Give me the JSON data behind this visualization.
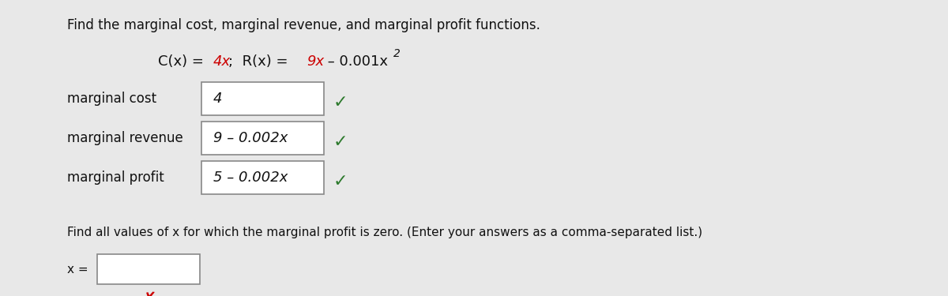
{
  "background_color": "#e8e8e8",
  "content_bg": "#e0e0e0",
  "title_text": "Find the marginal cost, marginal revenue, and marginal profit functions.",
  "rows": [
    {
      "label": "marginal cost",
      "answer": "4",
      "has_check": true
    },
    {
      "label": "marginal revenue",
      "answer": "9 – 0.002x",
      "has_check": true
    },
    {
      "label": "marginal profit",
      "answer": "5 – 0.002x",
      "has_check": true
    }
  ],
  "bottom_text": "Find all values of x for which the marginal profit is zero. (Enter your answers as a comma-separated list.)",
  "x_label": "x =",
  "check_color": "#2d7a2d",
  "x_mark_color": "#cc0000",
  "box_edge_color": "#888888",
  "text_color": "#111111",
  "red_color": "#cc0000",
  "font_size_title": 12,
  "font_size_formula": 13,
  "font_size_labels": 12,
  "font_size_answer": 13,
  "font_size_check": 16,
  "font_size_bottom": 11
}
